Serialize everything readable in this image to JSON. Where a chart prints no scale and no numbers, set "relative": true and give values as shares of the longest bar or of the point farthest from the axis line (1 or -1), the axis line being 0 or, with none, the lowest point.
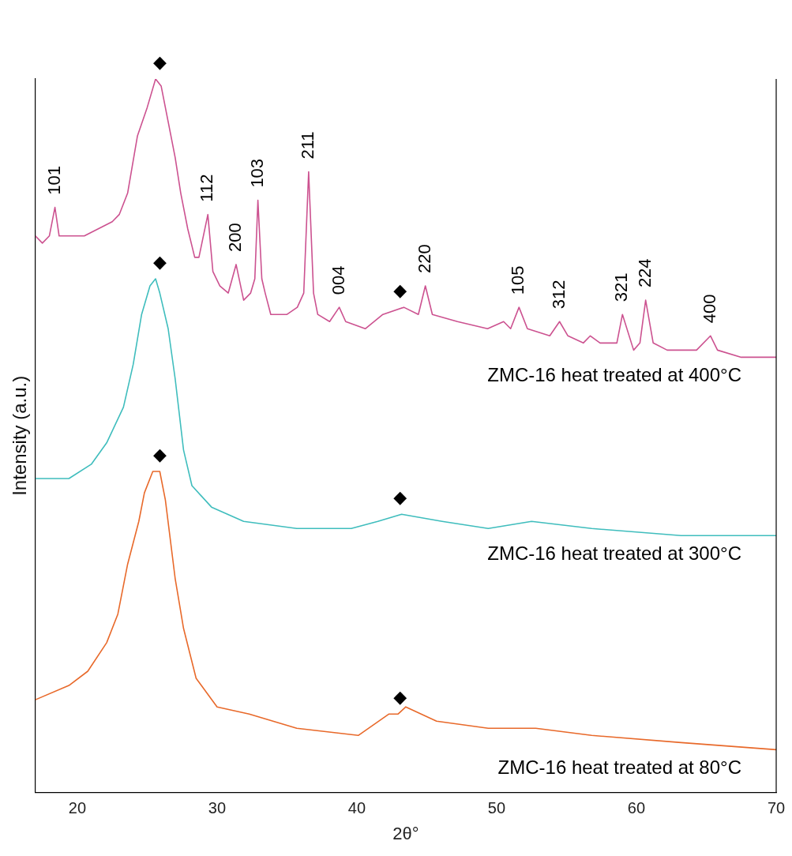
{
  "chart_data": {
    "type": "line",
    "xlabel": "2θ°",
    "ylabel": "Intensity (a.u.)",
    "relative": true,
    "xlim": [
      17,
      70
    ],
    "xticks": [
      20,
      30,
      40,
      50,
      60,
      70
    ],
    "grid": false,
    "legend": false,
    "marker": "none",
    "line_style": "solid",
    "tick_labels": "x",
    "series": [
      {
        "name": "ZMC-16 heat treated at 400°C",
        "color": "#cc5290",
        "x": [
          17,
          17.5,
          18,
          18.4,
          18.7,
          19.5,
          20.5,
          21.5,
          22.5,
          23,
          23.6,
          24.3,
          25,
          25.6,
          26,
          26.5,
          27,
          27.4,
          27.9,
          28.4,
          28.7,
          29.34,
          29.7,
          30.2,
          30.8,
          31.36,
          31.9,
          32.4,
          32.7,
          32.92,
          33.2,
          33.44,
          33.84,
          35,
          35.74,
          36.2,
          36.55,
          36.9,
          37.2,
          38.05,
          38.74,
          39.2,
          40.6,
          41.86,
          43.36,
          44.4,
          44.9,
          45.4,
          47.2,
          49.35,
          50.5,
          51,
          51.6,
          52.2,
          53.8,
          54.5,
          55.1,
          56.2,
          56.7,
          57.4,
          58.6,
          59,
          59.8,
          60.25,
          60.66,
          61.2,
          62.2,
          64.3,
          65.3,
          65.8,
          67.5,
          70
        ],
        "values": [
          0.78,
          0.77,
          0.78,
          0.82,
          0.78,
          0.78,
          0.78,
          0.79,
          0.8,
          0.81,
          0.84,
          0.92,
          0.96,
          1,
          0.99,
          0.94,
          0.89,
          0.84,
          0.79,
          0.75,
          0.75,
          0.81,
          0.73,
          0.71,
          0.7,
          0.74,
          0.69,
          0.7,
          0.72,
          0.83,
          0.72,
          0.7,
          0.67,
          0.67,
          0.68,
          0.7,
          0.87,
          0.7,
          0.67,
          0.66,
          0.68,
          0.66,
          0.65,
          0.67,
          0.68,
          0.67,
          0.71,
          0.67,
          0.66,
          0.65,
          0.66,
          0.65,
          0.68,
          0.65,
          0.64,
          0.66,
          0.64,
          0.63,
          0.64,
          0.63,
          0.63,
          0.67,
          0.62,
          0.63,
          0.69,
          0.63,
          0.62,
          0.62,
          0.64,
          0.62,
          0.61,
          0.61
        ]
      },
      {
        "name": "ZMC-16 heat treated at 300°C",
        "color": "#3fbdbd",
        "x": [
          17,
          19.4,
          21,
          22.1,
          23.3,
          24,
          24.6,
          25.2,
          25.6,
          25.9,
          26.5,
          27,
          27.6,
          28.2,
          29.6,
          31.9,
          35.7,
          39.6,
          41.5,
          43.2,
          46.1,
          49.4,
          52.5,
          56.8,
          63.2,
          70
        ],
        "values": [
          0.44,
          0.44,
          0.46,
          0.49,
          0.54,
          0.6,
          0.67,
          0.71,
          0.72,
          0.7,
          0.65,
          0.58,
          0.48,
          0.43,
          0.4,
          0.38,
          0.37,
          0.37,
          0.38,
          0.39,
          0.38,
          0.37,
          0.38,
          0.37,
          0.36,
          0.36
        ]
      },
      {
        "name": "ZMC-16 heat treated at 80°C",
        "color": "#e8692a",
        "x": [
          17,
          19.4,
          20.75,
          22.1,
          22.9,
          23.6,
          24.4,
          24.8,
          25.4,
          25.9,
          26.3,
          27,
          27.6,
          28.5,
          30,
          32.3,
          35.7,
          40.1,
          42.3,
          42.95,
          43.5,
          45.7,
          49.4,
          52.8,
          56.8,
          63.2,
          70
        ],
        "values": [
          0.13,
          0.15,
          0.17,
          0.21,
          0.25,
          0.32,
          0.38,
          0.42,
          0.45,
          0.45,
          0.41,
          0.3,
          0.23,
          0.16,
          0.12,
          0.11,
          0.09,
          0.08,
          0.11,
          0.11,
          0.12,
          0.1,
          0.09,
          0.09,
          0.08,
          0.07,
          0.06
        ]
      }
    ],
    "annotations": [
      {
        "text": "◆",
        "x": 25.9,
        "y": 1
      },
      {
        "text": "◆",
        "x": 43.1,
        "y": 0.68
      },
      {
        "text": "◆",
        "x": 25.9,
        "y": 0.72
      },
      {
        "text": "◆",
        "x": 43.1,
        "y": 0.39
      },
      {
        "text": "◆",
        "x": 25.9,
        "y": 0.45
      },
      {
        "text": "◆",
        "x": 43.1,
        "y": 0.11
      },
      {
        "text": "101",
        "x": 18.4,
        "y": 0.82
      },
      {
        "text": "112",
        "x": 29.34,
        "y": 0.81
      },
      {
        "text": "200",
        "x": 31.36,
        "y": 0.74
      },
      {
        "text": "103",
        "x": 32.92,
        "y": 0.83
      },
      {
        "text": "211",
        "x": 36.55,
        "y": 0.87
      },
      {
        "text": "004",
        "x": 38.74,
        "y": 0.68
      },
      {
        "text": "220",
        "x": 44.9,
        "y": 0.71
      },
      {
        "text": "105",
        "x": 51.6,
        "y": 0.68
      },
      {
        "text": "312",
        "x": 54.5,
        "y": 0.66
      },
      {
        "text": "321",
        "x": 59,
        "y": 0.67
      },
      {
        "text": "224",
        "x": 60.66,
        "y": 0.69
      },
      {
        "text": "400",
        "x": 65.3,
        "y": 0.64
      }
    ]
  }
}
